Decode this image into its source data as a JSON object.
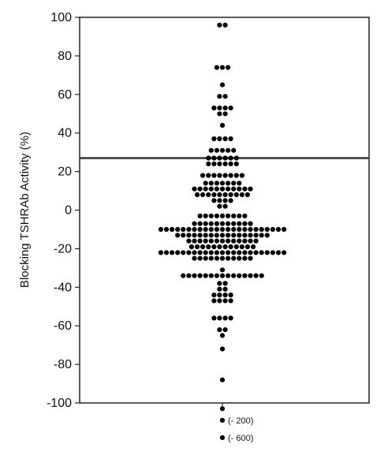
{
  "chart_data": {
    "type": "scatter",
    "title": "",
    "xlabel": "",
    "ylabel": "Blocking TSHRAb Activity (%)",
    "ylim": [
      -100,
      100
    ],
    "yticks": [
      100,
      80,
      60,
      40,
      20,
      0,
      -20,
      -40,
      -60,
      -80,
      -100
    ],
    "grid": false,
    "cutoff": 27,
    "point_color": "#000000",
    "line_color": "#333333",
    "rows": [
      {
        "y": 96,
        "n": 2
      },
      {
        "y": 74,
        "n": 3
      },
      {
        "y": 65,
        "n": 1
      },
      {
        "y": 59,
        "n": 2
      },
      {
        "y": 53,
        "n": 4
      },
      {
        "y": 50,
        "n": 2
      },
      {
        "y": 44,
        "n": 1
      },
      {
        "y": 37,
        "n": 4
      },
      {
        "y": 31,
        "n": 5
      },
      {
        "y": 27,
        "n": 6
      },
      {
        "y": 24,
        "n": 6
      },
      {
        "y": 18,
        "n": 8
      },
      {
        "y": 14,
        "n": 7
      },
      {
        "y": 11,
        "n": 11
      },
      {
        "y": 8,
        "n": 10
      },
      {
        "y": 5,
        "n": 4
      },
      {
        "y": 2,
        "n": 2
      },
      {
        "y": -3,
        "n": 9
      },
      {
        "y": -7,
        "n": 11
      },
      {
        "y": -10,
        "n": 23
      },
      {
        "y": -13,
        "n": 17
      },
      {
        "y": -16,
        "n": 13
      },
      {
        "y": -19,
        "n": 12
      },
      {
        "y": -22,
        "n": 23
      },
      {
        "y": -25,
        "n": 11
      },
      {
        "y": -31,
        "n": 1
      },
      {
        "y": -34,
        "n": 15
      },
      {
        "y": -38,
        "n": 2
      },
      {
        "y": -41,
        "n": 2
      },
      {
        "y": -44,
        "n": 4
      },
      {
        "y": -47,
        "n": 4
      },
      {
        "y": -56,
        "n": 4
      },
      {
        "y": -62,
        "n": 2
      },
      {
        "y": -65,
        "n": 1
      },
      {
        "y": -72,
        "n": 1
      },
      {
        "y": -88,
        "n": 1
      },
      {
        "y": -103,
        "n": 1
      }
    ],
    "outliers": [
      {
        "value": -200,
        "label": "(- 200)"
      },
      {
        "value": -600,
        "label": "(- 600)"
      }
    ]
  }
}
